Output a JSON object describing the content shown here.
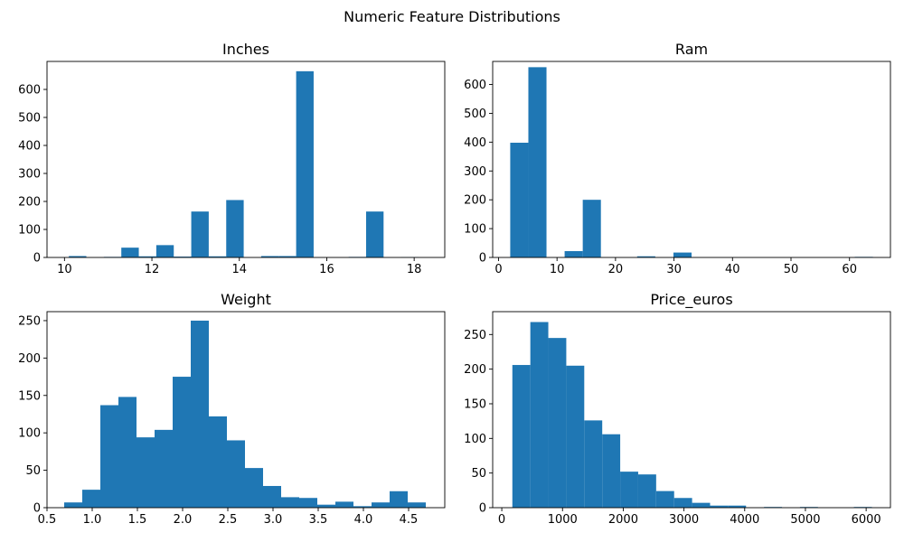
{
  "figure": {
    "suptitle": "Numeric Feature Distributions"
  },
  "colors": {
    "bar": "#1f77b4",
    "axis": "#000000",
    "background": "#ffffff"
  },
  "chart_data": [
    {
      "type": "bar",
      "title": "Inches",
      "xlabel": "",
      "ylabel": "",
      "xlim": [
        9.6,
        18.7
      ],
      "ylim": [
        0,
        700
      ],
      "xticks": [
        10,
        12,
        14,
        16,
        18
      ],
      "yticks": [
        0,
        100,
        200,
        300,
        400,
        500,
        600
      ],
      "bins": [
        {
          "x0": 10.1,
          "x1": 10.5,
          "count": 5
        },
        {
          "x0": 10.5,
          "x1": 10.9,
          "count": 0
        },
        {
          "x0": 10.9,
          "x1": 11.3,
          "count": 2
        },
        {
          "x0": 11.3,
          "x1": 11.7,
          "count": 35
        },
        {
          "x0": 11.7,
          "x1": 12.1,
          "count": 4
        },
        {
          "x0": 12.1,
          "x1": 12.5,
          "count": 44
        },
        {
          "x0": 12.5,
          "x1": 12.9,
          "count": 3
        },
        {
          "x0": 12.9,
          "x1": 13.3,
          "count": 164
        },
        {
          "x0": 13.3,
          "x1": 13.7,
          "count": 4
        },
        {
          "x0": 13.7,
          "x1": 14.1,
          "count": 205
        },
        {
          "x0": 14.1,
          "x1": 14.5,
          "count": 0
        },
        {
          "x0": 14.5,
          "x1": 14.9,
          "count": 5
        },
        {
          "x0": 14.9,
          "x1": 15.3,
          "count": 5
        },
        {
          "x0": 15.3,
          "x1": 15.7,
          "count": 665
        },
        {
          "x0": 15.7,
          "x1": 16.1,
          "count": 0
        },
        {
          "x0": 16.1,
          "x1": 16.5,
          "count": 0
        },
        {
          "x0": 16.5,
          "x1": 16.9,
          "count": 2
        },
        {
          "x0": 16.9,
          "x1": 17.3,
          "count": 164
        },
        {
          "x0": 17.3,
          "x1": 17.7,
          "count": 0
        },
        {
          "x0": 17.7,
          "x1": 18.1,
          "count": 1
        }
      ]
    },
    {
      "type": "bar",
      "title": "Ram",
      "xlim": [
        -1,
        67
      ],
      "ylim": [
        0,
        680
      ],
      "xticks": [
        0,
        10,
        20,
        30,
        40,
        50,
        60
      ],
      "yticks": [
        0,
        100,
        200,
        300,
        400,
        500,
        600
      ],
      "bins": [
        {
          "x0": 2,
          "x1": 5.1,
          "count": 398
        },
        {
          "x0": 5.1,
          "x1": 8.2,
          "count": 660
        },
        {
          "x0": 8.2,
          "x1": 11.3,
          "count": 0
        },
        {
          "x0": 11.3,
          "x1": 14.4,
          "count": 22
        },
        {
          "x0": 14.4,
          "x1": 17.5,
          "count": 200
        },
        {
          "x0": 17.5,
          "x1": 20.6,
          "count": 0
        },
        {
          "x0": 20.6,
          "x1": 23.7,
          "count": 0
        },
        {
          "x0": 23.7,
          "x1": 26.8,
          "count": 4
        },
        {
          "x0": 26.8,
          "x1": 29.9,
          "count": 0
        },
        {
          "x0": 29.9,
          "x1": 33,
          "count": 17
        },
        {
          "x0": 33,
          "x1": 36.1,
          "count": 0
        },
        {
          "x0": 36.1,
          "x1": 39.2,
          "count": 0
        },
        {
          "x0": 39.2,
          "x1": 42.3,
          "count": 0
        },
        {
          "x0": 42.3,
          "x1": 45.4,
          "count": 0
        },
        {
          "x0": 45.4,
          "x1": 48.5,
          "count": 0
        },
        {
          "x0": 48.5,
          "x1": 51.6,
          "count": 0
        },
        {
          "x0": 51.6,
          "x1": 54.7,
          "count": 0
        },
        {
          "x0": 54.7,
          "x1": 57.8,
          "count": 0
        },
        {
          "x0": 57.8,
          "x1": 60.9,
          "count": 0
        },
        {
          "x0": 60.9,
          "x1": 64,
          "count": 2
        }
      ]
    },
    {
      "type": "bar",
      "title": "Weight",
      "xlim": [
        0.5,
        4.9
      ],
      "ylim": [
        0,
        262
      ],
      "xticks": [
        0.5,
        1.0,
        1.5,
        2.0,
        2.5,
        3.0,
        3.5,
        4.0,
        4.5
      ],
      "xtick_labels": [
        "0.5",
        "1.0",
        "1.5",
        "2.0",
        "2.5",
        "3.0",
        "3.5",
        "4.0",
        "4.5"
      ],
      "yticks": [
        0,
        50,
        100,
        150,
        200,
        250
      ],
      "bins": [
        {
          "x0": 0.69,
          "x1": 0.89,
          "count": 7
        },
        {
          "x0": 0.89,
          "x1": 1.09,
          "count": 24
        },
        {
          "x0": 1.09,
          "x1": 1.29,
          "count": 137
        },
        {
          "x0": 1.29,
          "x1": 1.49,
          "count": 148
        },
        {
          "x0": 1.49,
          "x1": 1.69,
          "count": 94
        },
        {
          "x0": 1.69,
          "x1": 1.89,
          "count": 104
        },
        {
          "x0": 1.89,
          "x1": 2.09,
          "count": 175
        },
        {
          "x0": 2.09,
          "x1": 2.29,
          "count": 250
        },
        {
          "x0": 2.29,
          "x1": 2.49,
          "count": 122
        },
        {
          "x0": 2.49,
          "x1": 2.69,
          "count": 90
        },
        {
          "x0": 2.69,
          "x1": 2.89,
          "count": 53
        },
        {
          "x0": 2.89,
          "x1": 3.09,
          "count": 29
        },
        {
          "x0": 3.09,
          "x1": 3.29,
          "count": 14
        },
        {
          "x0": 3.29,
          "x1": 3.49,
          "count": 13
        },
        {
          "x0": 3.49,
          "x1": 3.69,
          "count": 4
        },
        {
          "x0": 3.69,
          "x1": 3.89,
          "count": 8
        },
        {
          "x0": 3.89,
          "x1": 4.09,
          "count": 2
        },
        {
          "x0": 4.09,
          "x1": 4.29,
          "count": 7
        },
        {
          "x0": 4.29,
          "x1": 4.49,
          "count": 22
        },
        {
          "x0": 4.49,
          "x1": 4.69,
          "count": 7
        }
      ]
    },
    {
      "type": "bar",
      "title": "Price_euros",
      "xlim": [
        -150,
        6400
      ],
      "ylim": [
        0,
        283
      ],
      "xticks": [
        0,
        1000,
        2000,
        3000,
        4000,
        5000,
        6000
      ],
      "yticks": [
        0,
        50,
        100,
        150,
        200,
        250
      ],
      "bins": [
        {
          "x0": 174,
          "x1": 470,
          "count": 206
        },
        {
          "x0": 470,
          "x1": 766,
          "count": 268
        },
        {
          "x0": 766,
          "x1": 1062,
          "count": 245
        },
        {
          "x0": 1062,
          "x1": 1358,
          "count": 205
        },
        {
          "x0": 1358,
          "x1": 1654,
          "count": 126
        },
        {
          "x0": 1654,
          "x1": 1950,
          "count": 106
        },
        {
          "x0": 1950,
          "x1": 2246,
          "count": 52
        },
        {
          "x0": 2246,
          "x1": 2542,
          "count": 48
        },
        {
          "x0": 2542,
          "x1": 2838,
          "count": 24
        },
        {
          "x0": 2838,
          "x1": 3134,
          "count": 14
        },
        {
          "x0": 3134,
          "x1": 3430,
          "count": 7
        },
        {
          "x0": 3430,
          "x1": 3726,
          "count": 3
        },
        {
          "x0": 3726,
          "x1": 4022,
          "count": 3
        },
        {
          "x0": 4022,
          "x1": 4318,
          "count": 0
        },
        {
          "x0": 4318,
          "x1": 4614,
          "count": 1
        },
        {
          "x0": 4614,
          "x1": 4910,
          "count": 0
        },
        {
          "x0": 4910,
          "x1": 5206,
          "count": 1
        },
        {
          "x0": 5206,
          "x1": 5502,
          "count": 0
        },
        {
          "x0": 5502,
          "x1": 5798,
          "count": 0
        },
        {
          "x0": 5798,
          "x1": 6095,
          "count": 1
        }
      ]
    }
  ]
}
